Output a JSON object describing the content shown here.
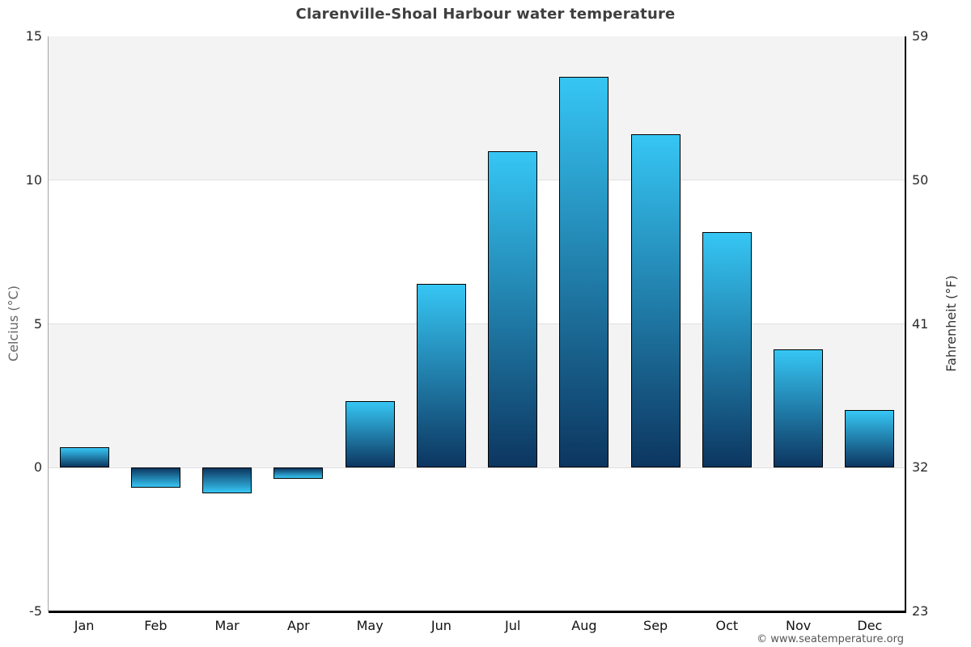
{
  "footer": {
    "copyright": "© www.seatemperature.org"
  },
  "chart_data": {
    "type": "bar",
    "title": "Clarenville-Shoal Harbour water temperature",
    "categories": [
      "Jan",
      "Feb",
      "Mar",
      "Apr",
      "May",
      "Jun",
      "Jul",
      "Aug",
      "Sep",
      "Oct",
      "Nov",
      "Dec"
    ],
    "values": [
      0.7,
      -0.7,
      -0.9,
      -0.4,
      2.3,
      6.4,
      11.0,
      13.6,
      11.6,
      8.2,
      4.1,
      2.0
    ],
    "ylabel_left": "Celcius (°C)",
    "ylabel_right": "Fahrenheit (°F)",
    "yticks_left": [
      15,
      10,
      5,
      0,
      -5
    ],
    "yticks_right": [
      59,
      50,
      41,
      32,
      23
    ],
    "ylim": [
      -5,
      15
    ],
    "grid": "horizontal gridlines every 5°C with alternating shaded bands",
    "legend": "none",
    "colors": {
      "bar_gradient_top": "#36c6f4",
      "bar_gradient_bottom": "#0c3660",
      "bar_border": "#000000",
      "band_shade": "#f3f3f3",
      "grid_line": "#e0e0e0",
      "left_axis_line": "#a5a5a5",
      "right_axis_line": "#000000",
      "bottom_axis_line": "#000000",
      "title_color": "#3f3f3f"
    }
  }
}
